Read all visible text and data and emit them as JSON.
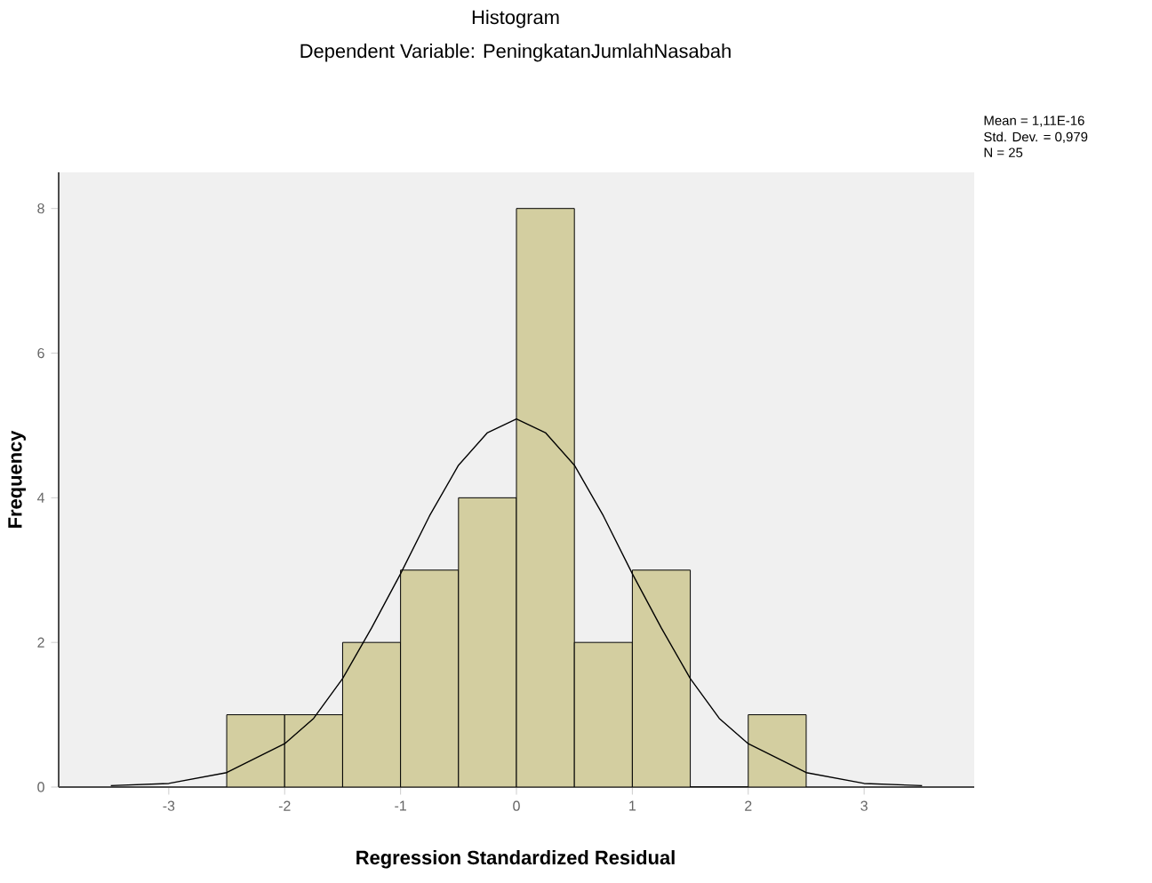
{
  "chart_data": {
    "type": "histogram",
    "title": "Histogram",
    "subtitle": "Dependent Variable: PeningkatanJumlahNasabah",
    "xlabel": "Regression Standardized Residual",
    "ylabel": "Frequency",
    "annotations": [
      "Mean = 1,11E-16",
      "Std. Dev. = 0,979",
      "N = 25"
    ],
    "xlim": [
      -3.95,
      3.95
    ],
    "ylim": [
      0,
      8.5
    ],
    "xticks": [
      -3,
      -2,
      -1,
      0,
      1,
      2,
      3
    ],
    "yticks": [
      0,
      2,
      4,
      6,
      8
    ],
    "series": [
      {
        "color": "#d3cea0",
        "bins": [
          -2.5,
          -2,
          -1.5,
          -1,
          -0.5,
          0,
          0.5,
          1,
          1.5,
          2,
          2.5
        ],
        "values": [
          1,
          1,
          2,
          3,
          4,
          8,
          2,
          3,
          0,
          1
        ]
      },
      {
        "type": "line",
        "color": "#000000",
        "x": [
          -3.5,
          -3,
          -2.5,
          -2,
          -1.75,
          -1.5,
          -1.25,
          -1,
          -0.75,
          -0.5,
          -0.25,
          0,
          0.25,
          0.5,
          0.75,
          1,
          1.25,
          1.5,
          1.75,
          2,
          2.5,
          3,
          3.5
        ],
        "values": [
          0.02,
          0.05,
          0.2,
          0.6,
          0.95,
          1.5,
          2.2,
          2.95,
          3.75,
          4.45,
          4.9,
          5.09,
          4.9,
          4.45,
          3.75,
          2.95,
          2.2,
          1.5,
          0.95,
          0.6,
          0.2,
          0.05,
          0.02
        ]
      }
    ]
  }
}
